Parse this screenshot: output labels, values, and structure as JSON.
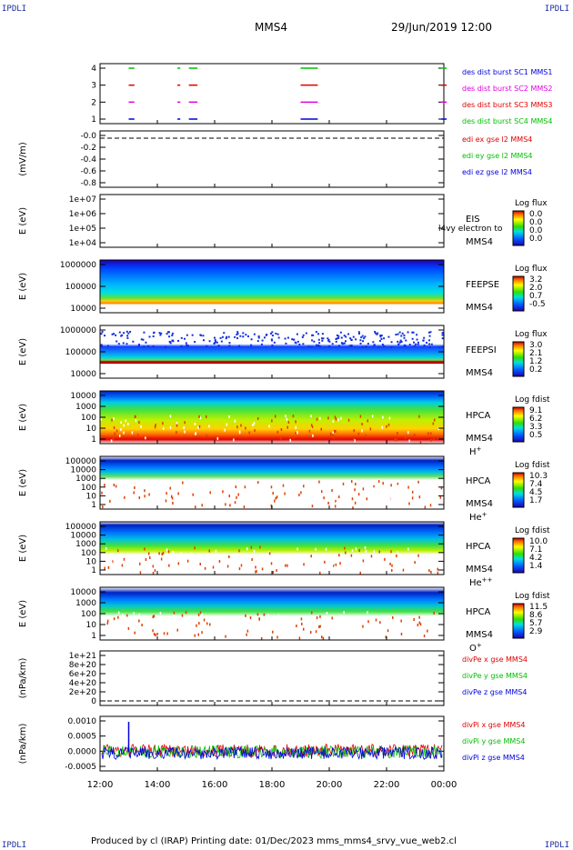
{
  "corners": {
    "tl": "IPDLI",
    "tr": "IPDLI",
    "bl": "IPDLI",
    "br": "IPDLI"
  },
  "header": {
    "spacecraft": "MMS4",
    "date": "29/Jun/2019 12:00"
  },
  "footer": {
    "text": "Produced by cl (IRAP)   Printing date: 01/Dec/2023   mms_mms4_srvy_vue_web2.cl"
  },
  "colors": {
    "red": "#e00000",
    "green": "#00c000",
    "blue": "#0000e0",
    "magenta": "#e000e0",
    "axis": "#000000"
  },
  "chart_data": [
    {
      "id": "burst",
      "type": "timeline",
      "ytick_labels": [
        "4",
        "3",
        "2",
        "1"
      ],
      "legend": [
        {
          "text": "des dist burst SC1 MMS1",
          "color": "#0000e0"
        },
        {
          "text": "des dist burst SC2 MMS2",
          "color": "#e000e0"
        },
        {
          "text": "des dist burst SC3 MMS3",
          "color": "#e00000"
        },
        {
          "text": "des dist burst SC4 MMS4",
          "color": "#00c000"
        }
      ],
      "intervals_hours": [
        [
          13.0,
          13.2
        ],
        [
          14.7,
          14.8
        ],
        [
          15.1,
          15.4
        ],
        [
          19.0,
          19.6
        ],
        [
          23.9,
          24.1
        ]
      ]
    },
    {
      "id": "edi",
      "type": "line",
      "ylabel": "(mV/m)",
      "ytick_labels": [
        "-0.0",
        "-0.2",
        "-0.4",
        "-0.6",
        "-0.8"
      ],
      "legend": [
        {
          "text": "edi ex gse l2 MMS4",
          "color": "#e00000"
        },
        {
          "text": "edi ey gse l2 MMS4",
          "color": "#00c000"
        },
        {
          "text": "edi ez gse l2 MMS4",
          "color": "#0000e0"
        }
      ]
    },
    {
      "id": "eis",
      "type": "heatmap",
      "ylabel": "E (eV)",
      "ytick_labels": [
        "1e+07",
        "1e+06",
        "1e+05",
        "1e+04"
      ],
      "instrument": [
        "EIS",
        "MMS4"
      ],
      "overlay_text": "l4vy electron to",
      "colorbar": {
        "title": "Log flux",
        "ticks": [
          "0.0",
          "0.0",
          "0.0",
          "0.0"
        ]
      }
    },
    {
      "id": "feepse",
      "type": "heatmap",
      "ylabel": "E (eV)",
      "ytick_labels": [
        "1000000",
        "100000",
        "10000"
      ],
      "instrument": [
        "FEEPSE",
        "MMS4"
      ],
      "colorbar": {
        "title": "Log flux",
        "ticks": [
          "3.2",
          "2.0",
          "0.7",
          "-0.5"
        ]
      }
    },
    {
      "id": "feepsi",
      "type": "heatmap",
      "ylabel": "E (eV)",
      "ytick_labels": [
        "1000000",
        "100000",
        "10000"
      ],
      "instrument": [
        "FEEPSI",
        "MMS4"
      ],
      "colorbar": {
        "title": "Log flux",
        "ticks": [
          "3.0",
          "2.1",
          "1.2",
          "0.2"
        ]
      }
    },
    {
      "id": "hpca_h",
      "type": "heatmap",
      "ylabel": "E (eV)",
      "ytick_labels": [
        "10000",
        "1000",
        "100",
        "10",
        "1"
      ],
      "instrument": [
        "HPCA",
        "MMS4"
      ],
      "species": {
        "base": "H",
        "sup": "+"
      },
      "colorbar": {
        "title": "Log fdist",
        "ticks": [
          "9.1",
          "6.2",
          "3.3",
          "0.5"
        ]
      }
    },
    {
      "id": "hpca_he",
      "type": "heatmap",
      "ylabel": "E (eV)",
      "ytick_labels": [
        "100000",
        "10000",
        "1000",
        "100",
        "10",
        "1"
      ],
      "instrument": [
        "HPCA",
        "MMS4"
      ],
      "species": {
        "base": "He",
        "sup": "+"
      },
      "colorbar": {
        "title": "Log fdist",
        "ticks": [
          "10.3",
          "7.4",
          "4.5",
          "1.7"
        ]
      }
    },
    {
      "id": "hpca_hepp",
      "type": "heatmap",
      "ylabel": "E (eV)",
      "ytick_labels": [
        "100000",
        "10000",
        "1000",
        "100",
        "10",
        "1"
      ],
      "instrument": [
        "HPCA",
        "MMS4"
      ],
      "species": {
        "base": "He",
        "sup": "++"
      },
      "colorbar": {
        "title": "Log fdist",
        "ticks": [
          "10.0",
          "7.1",
          "4.2",
          "1.4"
        ]
      }
    },
    {
      "id": "hpca_o",
      "type": "heatmap",
      "ylabel": "E (eV)",
      "ytick_labels": [
        "10000",
        "1000",
        "100",
        "10",
        "1"
      ],
      "instrument": [
        "HPCA",
        "MMS4"
      ],
      "species": {
        "base": "O",
        "sup": "+"
      },
      "colorbar": {
        "title": "Log fdist",
        "ticks": [
          "11.5",
          "8.6",
          "5.7",
          "2.9"
        ]
      }
    },
    {
      "id": "divpe",
      "type": "line",
      "ylabel": "(nPa/km)",
      "ytick_labels": [
        "1e+21",
        "8e+20",
        "6e+20",
        "4e+20",
        "2e+20",
        "0"
      ],
      "legend": [
        {
          "text": "divPe x gse MMS4",
          "color": "#e00000"
        },
        {
          "text": "divPe y gse MMS4",
          "color": "#00c000"
        },
        {
          "text": "divPe z gse MMS4",
          "color": "#0000e0"
        }
      ]
    },
    {
      "id": "divpi",
      "type": "line",
      "ylabel": "(nPa/km)",
      "ytick_labels": [
        "0.0010",
        "0.0005",
        "0.0000",
        "-0.0005"
      ],
      "ylim": [
        -0.0007,
        0.0013
      ],
      "legend": [
        {
          "text": "divPi x gse MMS4",
          "color": "#e00000"
        },
        {
          "text": "divPi y gse MMS4",
          "color": "#00c000"
        },
        {
          "text": "divPi z gse MMS4",
          "color": "#0000e0"
        }
      ],
      "spike": {
        "x_hours": 13.0,
        "y": 0.0011
      }
    }
  ],
  "x_axis": {
    "tick_labels": [
      "12:00",
      "14:00",
      "16:00",
      "18:00",
      "20:00",
      "22:00",
      "00:00"
    ]
  }
}
